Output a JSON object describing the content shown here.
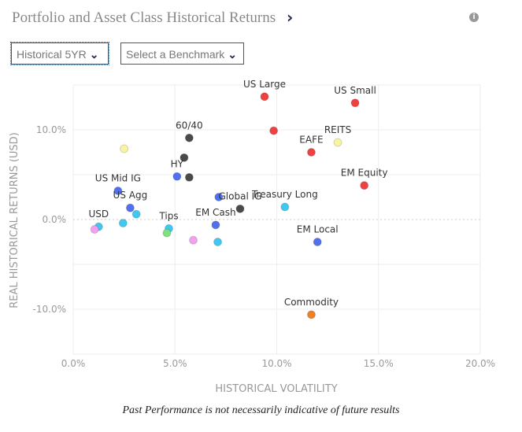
{
  "header": {
    "title": "Portfolio and Asset Class Historical Returns",
    "chevron": "›",
    "info_icon": "info-icon"
  },
  "controls": {
    "period": "Historical 5YR",
    "benchmark": "Select a Benchmark"
  },
  "footer": "Past Performance is not necessarily indicative of future results",
  "chart_data": {
    "type": "scatter",
    "xlabel": "HISTORICAL VOLATILITY",
    "ylabel": "REAL HISTORICAL RETURNS (USD)",
    "xlim": [
      0,
      20
    ],
    "ylim": [
      -15,
      15
    ],
    "xticks": [
      {
        "v": 0,
        "l": "0.0%"
      },
      {
        "v": 5,
        "l": "5.0%"
      },
      {
        "v": 10,
        "l": "10.0%"
      },
      {
        "v": 15,
        "l": "15.0%"
      },
      {
        "v": 20,
        "l": "20.0%"
      }
    ],
    "yticks": [
      {
        "v": 10,
        "l": "10.0%"
      },
      {
        "v": 0,
        "l": "0.0%"
      },
      {
        "v": -10,
        "l": "-10.0%"
      }
    ],
    "grid": true,
    "points": [
      {
        "label": "US Large",
        "x": 9.4,
        "y": 13.7,
        "color": "#f04040"
      },
      {
        "label": "US Small",
        "x": 13.85,
        "y": 13.0,
        "color": "#f04040"
      },
      {
        "label": "",
        "x": 9.85,
        "y": 9.9,
        "color": "#f04040"
      },
      {
        "label": "EAFE",
        "x": 11.7,
        "y": 7.5,
        "color": "#f04040"
      },
      {
        "label": "REITS",
        "x": 13.0,
        "y": 8.6,
        "color": "#f8f4a0"
      },
      {
        "label": "EM Equity",
        "x": 14.3,
        "y": 3.8,
        "color": "#f04040"
      },
      {
        "label": "",
        "x": 2.5,
        "y": 7.9,
        "color": "#f8f4a0"
      },
      {
        "label": "60/40",
        "x": 5.7,
        "y": 9.1,
        "color": "#4a4a4a"
      },
      {
        "label": "",
        "x": 5.45,
        "y": 6.9,
        "color": "#4a4a4a"
      },
      {
        "label": "HY",
        "x": 5.1,
        "y": 4.8,
        "color": "#5070f0"
      },
      {
        "label": "",
        "x": 5.7,
        "y": 4.7,
        "color": "#4a4a4a"
      },
      {
        "label": "",
        "x": 7.15,
        "y": 2.5,
        "color": "#5070f0"
      },
      {
        "label": "US Mid IG",
        "x": 2.2,
        "y": 3.2,
        "color": "#5070f0"
      },
      {
        "label": "US Agg",
        "x": 2.8,
        "y": 1.3,
        "color": "#5070f0"
      },
      {
        "label": "",
        "x": 3.1,
        "y": 0.6,
        "color": "#40c8f0"
      },
      {
        "label": "Global IG",
        "x": 8.2,
        "y": 1.2,
        "color": "#4a4a4a"
      },
      {
        "label": "Treasury Long",
        "x": 10.4,
        "y": 1.4,
        "color": "#40c8f0"
      },
      {
        "label": "",
        "x": 2.45,
        "y": -0.4,
        "color": "#40c8f0"
      },
      {
        "label": "USD",
        "x": 1.25,
        "y": -0.8,
        "color": "#40c8f0"
      },
      {
        "label": "",
        "x": 1.05,
        "y": -1.1,
        "color": "#f4a0f0"
      },
      {
        "label": "Tips",
        "x": 4.7,
        "y": -1.0,
        "color": "#40c8f0"
      },
      {
        "label": "",
        "x": 4.6,
        "y": -1.5,
        "color": "#80e080"
      },
      {
        "label": "EM Cash",
        "x": 7.0,
        "y": -0.6,
        "color": "#5070f0"
      },
      {
        "label": "",
        "x": 5.9,
        "y": -2.3,
        "color": "#f4a0f0"
      },
      {
        "label": "",
        "x": 7.1,
        "y": -2.5,
        "color": "#40c8f0"
      },
      {
        "label": "EM Local",
        "x": 12.0,
        "y": -2.5,
        "color": "#5070f0"
      },
      {
        "label": "Commodity",
        "x": 11.7,
        "y": -10.6,
        "color": "#f08020"
      }
    ]
  }
}
